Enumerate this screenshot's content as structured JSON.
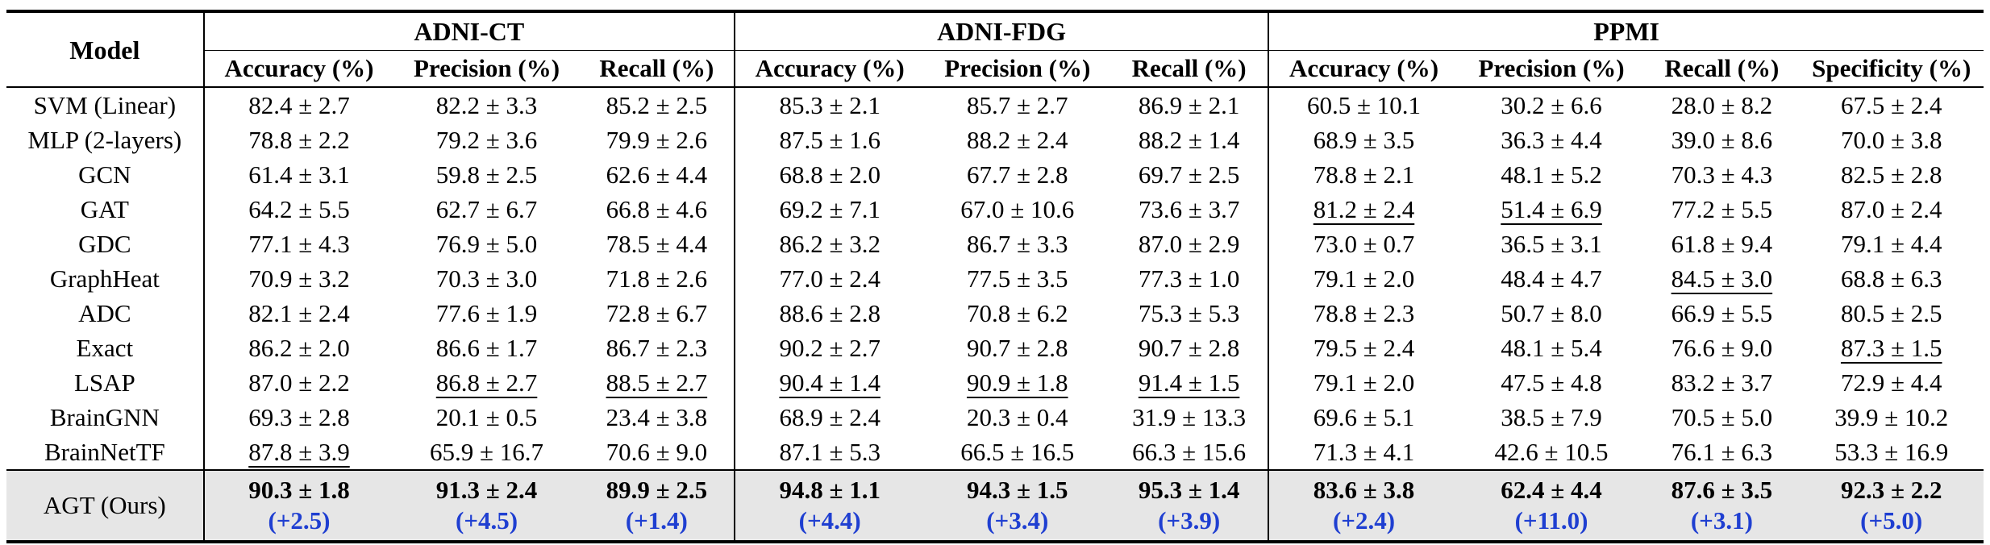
{
  "header": {
    "model_label": "Model",
    "groups": [
      {
        "name": "ADNI-CT",
        "metrics": [
          "Accuracy (%)",
          "Precision (%)",
          "Recall (%)"
        ]
      },
      {
        "name": "ADNI-FDG",
        "metrics": [
          "Accuracy (%)",
          "Precision (%)",
          "Recall (%)"
        ]
      },
      {
        "name": "PPMI",
        "metrics": [
          "Accuracy (%)",
          "Precision (%)",
          "Recall (%)",
          "Specificity (%)"
        ]
      }
    ]
  },
  "rows": [
    {
      "model": "SVM (Linear)",
      "cells": [
        {
          "v": "82.4 ± 2.7"
        },
        {
          "v": "82.2 ± 3.3"
        },
        {
          "v": "85.2 ± 2.5"
        },
        {
          "v": "85.3 ± 2.1"
        },
        {
          "v": "85.7 ± 2.7"
        },
        {
          "v": "86.9 ± 2.1"
        },
        {
          "v": "60.5 ± 10.1"
        },
        {
          "v": "30.2 ± 6.6"
        },
        {
          "v": "28.0 ± 8.2"
        },
        {
          "v": "67.5 ± 2.4"
        }
      ]
    },
    {
      "model": "MLP (2-layers)",
      "cells": [
        {
          "v": "78.8 ± 2.2"
        },
        {
          "v": "79.2 ± 3.6"
        },
        {
          "v": "79.9 ± 2.6"
        },
        {
          "v": "87.5 ± 1.6"
        },
        {
          "v": "88.2 ± 2.4"
        },
        {
          "v": "88.2 ± 1.4"
        },
        {
          "v": "68.9 ± 3.5"
        },
        {
          "v": "36.3 ± 4.4"
        },
        {
          "v": "39.0 ± 8.6"
        },
        {
          "v": "70.0 ± 3.8"
        }
      ]
    },
    {
      "model": "GCN",
      "cells": [
        {
          "v": "61.4 ± 3.1"
        },
        {
          "v": "59.8 ± 2.5"
        },
        {
          "v": "62.6 ± 4.4"
        },
        {
          "v": "68.8 ± 2.0"
        },
        {
          "v": "67.7 ± 2.8"
        },
        {
          "v": "69.7 ± 2.5"
        },
        {
          "v": "78.8 ± 2.1"
        },
        {
          "v": "48.1 ± 5.2"
        },
        {
          "v": "70.3 ± 4.3"
        },
        {
          "v": "82.5 ± 2.8"
        }
      ]
    },
    {
      "model": "GAT",
      "cells": [
        {
          "v": "64.2 ± 5.5"
        },
        {
          "v": "62.7 ± 6.7"
        },
        {
          "v": "66.8 ± 4.6"
        },
        {
          "v": "69.2 ± 7.1"
        },
        {
          "v": "67.0 ± 10.6"
        },
        {
          "v": "73.6 ± 3.7"
        },
        {
          "v": "81.2 ± 2.4",
          "u": true
        },
        {
          "v": "51.4 ± 6.9",
          "u": true
        },
        {
          "v": "77.2 ± 5.5"
        },
        {
          "v": "87.0 ± 2.4"
        }
      ]
    },
    {
      "model": "GDC",
      "cells": [
        {
          "v": "77.1 ± 4.3"
        },
        {
          "v": "76.9 ± 5.0"
        },
        {
          "v": "78.5 ± 4.4"
        },
        {
          "v": "86.2 ± 3.2"
        },
        {
          "v": "86.7 ± 3.3"
        },
        {
          "v": "87.0 ± 2.9"
        },
        {
          "v": "73.0 ± 0.7"
        },
        {
          "v": "36.5 ± 3.1"
        },
        {
          "v": "61.8 ± 9.4"
        },
        {
          "v": "79.1 ± 4.4"
        }
      ]
    },
    {
      "model": "GraphHeat",
      "cells": [
        {
          "v": "70.9 ± 3.2"
        },
        {
          "v": "70.3 ± 3.0"
        },
        {
          "v": "71.8 ± 2.6"
        },
        {
          "v": "77.0 ± 2.4"
        },
        {
          "v": "77.5 ± 3.5"
        },
        {
          "v": "77.3 ± 1.0"
        },
        {
          "v": "79.1 ± 2.0"
        },
        {
          "v": "48.4 ± 4.7"
        },
        {
          "v": "84.5 ± 3.0",
          "u": true
        },
        {
          "v": "68.8 ± 6.3"
        }
      ]
    },
    {
      "model": "ADC",
      "cells": [
        {
          "v": "82.1 ± 2.4"
        },
        {
          "v": "77.6 ± 1.9"
        },
        {
          "v": "72.8 ± 6.7"
        },
        {
          "v": "88.6 ± 2.8"
        },
        {
          "v": "70.8 ± 6.2"
        },
        {
          "v": "75.3 ± 5.3"
        },
        {
          "v": "78.8 ± 2.3"
        },
        {
          "v": "50.7 ± 8.0"
        },
        {
          "v": "66.9 ± 5.5"
        },
        {
          "v": "80.5 ± 2.5"
        }
      ]
    },
    {
      "model": "Exact",
      "cells": [
        {
          "v": "86.2 ± 2.0"
        },
        {
          "v": "86.6 ± 1.7"
        },
        {
          "v": "86.7 ± 2.3"
        },
        {
          "v": "90.2 ± 2.7"
        },
        {
          "v": "90.7 ± 2.8"
        },
        {
          "v": "90.7 ± 2.8"
        },
        {
          "v": "79.5 ± 2.4"
        },
        {
          "v": "48.1 ± 5.4"
        },
        {
          "v": "76.6 ± 9.0"
        },
        {
          "v": "87.3 ± 1.5",
          "u": true
        }
      ]
    },
    {
      "model": "LSAP",
      "cells": [
        {
          "v": "87.0 ± 2.2"
        },
        {
          "v": "86.8 ± 2.7",
          "u": true
        },
        {
          "v": "88.5 ± 2.7",
          "u": true
        },
        {
          "v": "90.4 ± 1.4",
          "u": true
        },
        {
          "v": "90.9 ± 1.8",
          "u": true
        },
        {
          "v": "91.4 ± 1.5",
          "u": true
        },
        {
          "v": "79.1 ± 2.0"
        },
        {
          "v": "47.5 ± 4.8"
        },
        {
          "v": "83.2 ± 3.7"
        },
        {
          "v": "72.9 ± 4.4"
        }
      ]
    },
    {
      "model": "BrainGNN",
      "cells": [
        {
          "v": "69.3 ± 2.8"
        },
        {
          "v": "20.1 ± 0.5"
        },
        {
          "v": "23.4 ± 3.8"
        },
        {
          "v": "68.9 ± 2.4"
        },
        {
          "v": "20.3 ± 0.4"
        },
        {
          "v": "31.9 ± 13.3"
        },
        {
          "v": "69.6 ± 5.1"
        },
        {
          "v": "38.5 ± 7.9"
        },
        {
          "v": "70.5 ± 5.0"
        },
        {
          "v": "39.9 ± 10.2"
        }
      ]
    },
    {
      "model": "BrainNetTF",
      "cells": [
        {
          "v": "87.8 ± 3.9",
          "u": true
        },
        {
          "v": "65.9 ± 16.7"
        },
        {
          "v": "70.6 ± 9.0"
        },
        {
          "v": "87.1 ± 5.3"
        },
        {
          "v": "66.5 ± 16.5"
        },
        {
          "v": "66.3 ± 15.6"
        },
        {
          "v": "71.3 ± 4.1"
        },
        {
          "v": "42.6 ± 10.5"
        },
        {
          "v": "76.1 ± 6.3"
        },
        {
          "v": "53.3 ± 16.9"
        }
      ]
    }
  ],
  "ours": {
    "model": "AGT (Ours)",
    "cells": [
      {
        "v": "90.3 ± 1.8",
        "gain": "(+2.5)"
      },
      {
        "v": "91.3 ± 2.4",
        "gain": "(+4.5)"
      },
      {
        "v": "89.9 ± 2.5",
        "gain": "(+1.4)"
      },
      {
        "v": "94.8 ± 1.1",
        "gain": "(+4.4)"
      },
      {
        "v": "94.3 ± 1.5",
        "gain": "(+3.4)"
      },
      {
        "v": "95.3 ± 1.4",
        "gain": "(+3.9)"
      },
      {
        "v": "83.6 ± 3.8",
        "gain": "(+2.4)"
      },
      {
        "v": "62.4 ± 4.4",
        "gain": "(+11.0)"
      },
      {
        "v": "87.6 ± 3.5",
        "gain": "(+3.1)"
      },
      {
        "v": "92.3 ± 2.2",
        "gain": "(+5.0)"
      }
    ],
    "gain_color": "#1f3fd1"
  }
}
